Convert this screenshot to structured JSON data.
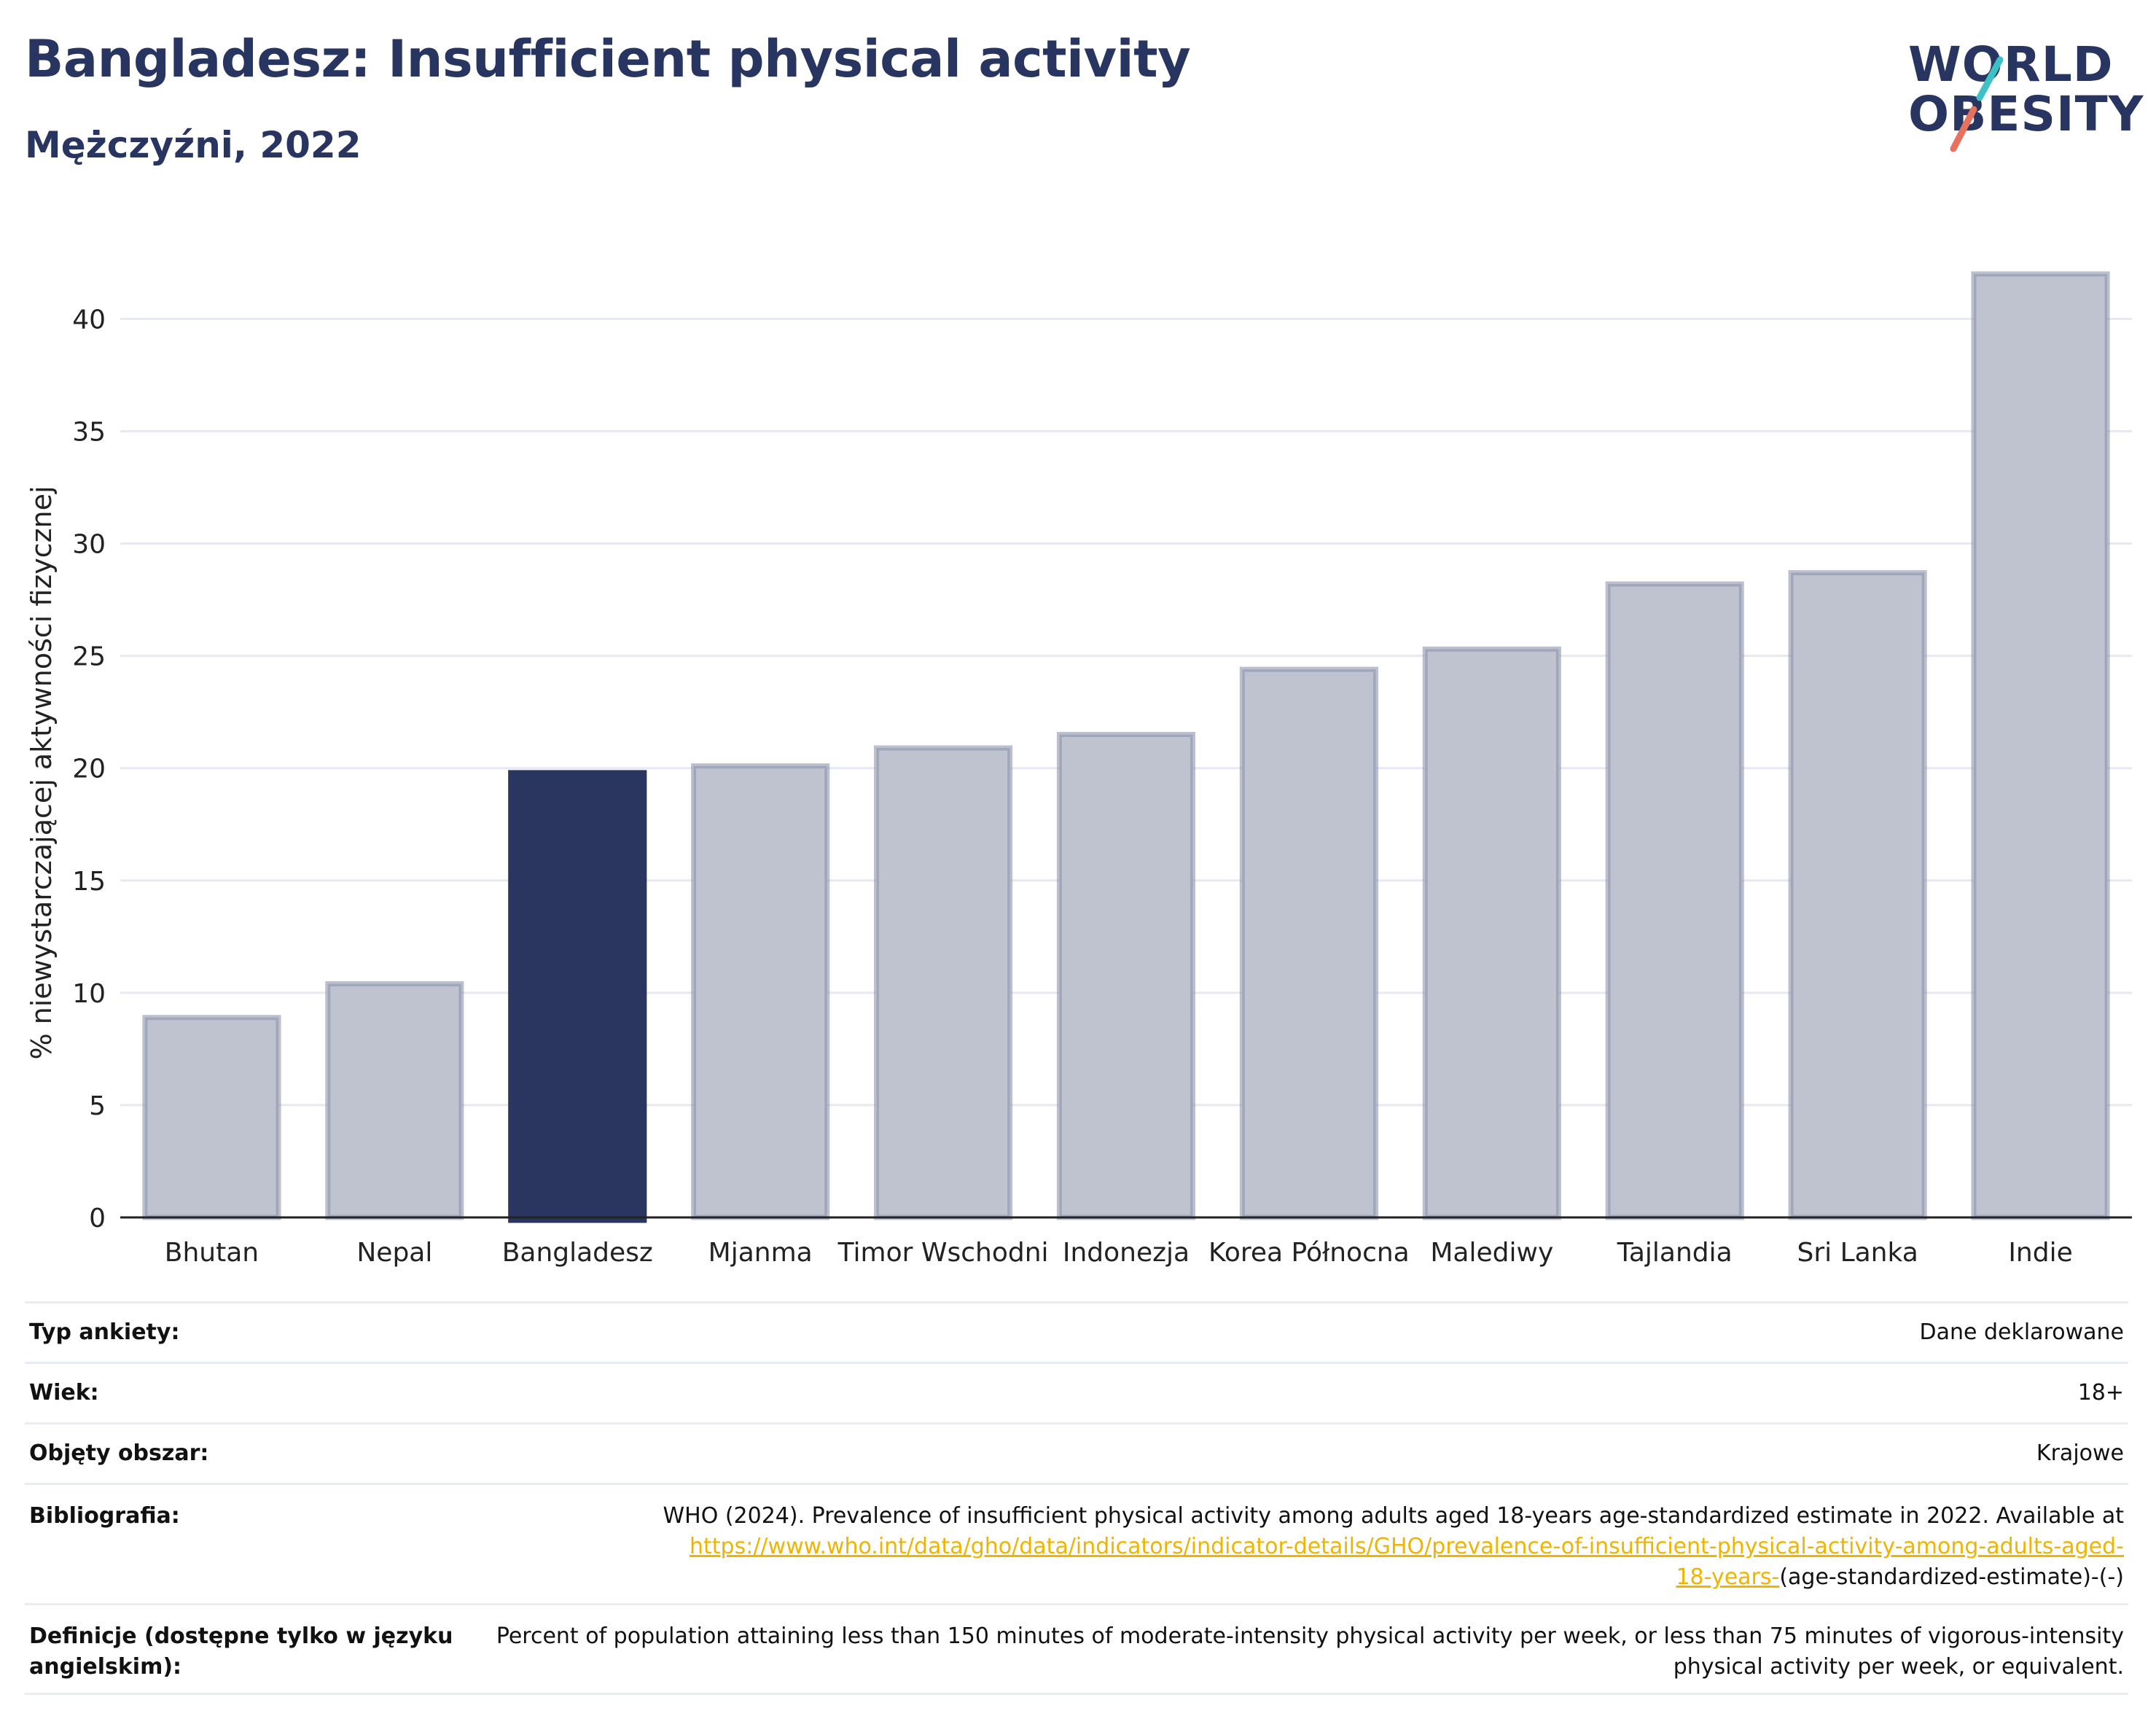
{
  "header": {
    "title": "Bangladesz: Insufficient physical activity",
    "subtitle": "Mężczyźni, 2022"
  },
  "logo": {
    "line1": "WORLD",
    "line2": "OBESITY",
    "stroke_colors": [
      "#3cc1c4",
      "#e8715d"
    ]
  },
  "colors": {
    "highlight": "#2b3660",
    "bar": "#bec3cf",
    "bar_edge": "#8e95ad",
    "grid": "#e7e9f0",
    "axis": "#222222"
  },
  "chart_data": {
    "type": "bar",
    "title": "Bangladesz: Insufficient physical activity",
    "subtitle": "Mężczyźni, 2022",
    "xlabel": "",
    "ylabel": "% niewystarczającej aktywności fizycznej",
    "ylim": [
      0,
      43
    ],
    "yticks": [
      0,
      5,
      10,
      15,
      20,
      25,
      30,
      35,
      40
    ],
    "grid": true,
    "highlight": "Bangladesz",
    "categories": [
      "Bhutan",
      "Nepal",
      "Bangladesz",
      "Mjanma",
      "Timor Wschodni",
      "Indonezja",
      "Korea Północna",
      "Malediwy",
      "Tajlandia",
      "Sri Lanka",
      "Indie"
    ],
    "values": [
      8.9,
      10.4,
      19.8,
      20.1,
      20.9,
      21.5,
      24.4,
      25.3,
      28.2,
      28.7,
      42.0
    ]
  },
  "meta": {
    "rows": [
      {
        "label": "Typ ankiety:",
        "value": "Dane deklarowane"
      },
      {
        "label": "Wiek:",
        "value": "18+"
      },
      {
        "label": "Objęty obszar:",
        "value": "Krajowe"
      }
    ],
    "bibliography": {
      "label": "Bibliografia:",
      "text": "WHO (2024). Prevalence of insufficient physical activity among adults aged 18-years age-standardized estimate in 2022. Available at",
      "link_line1": "https://www.who.int/data/gho/data/indicators/indicator-details/GHO/prevalence-of-insufficient-physical-activity-among-adults-aged-",
      "link_line2": "18-years-",
      "suffix": "(age-standardized-estimate)-(-)"
    },
    "definitions": {
      "label": "Definicje (dostępne tylko w języku angielskim):",
      "value": "Percent of population attaining less than 150 minutes of moderate-intensity physical activity per week, or less than 75 minutes of vigorous-intensity physical activity per week, or equivalent."
    }
  }
}
